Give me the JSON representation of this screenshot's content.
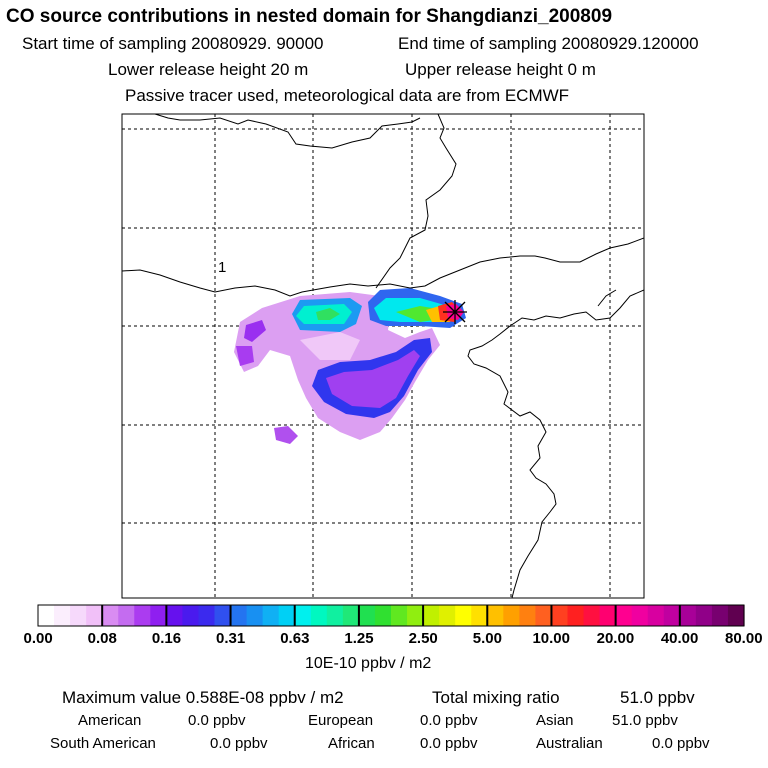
{
  "header": {
    "title": "CO  source contributions in nested domain for Shangdianzi_200809",
    "start_label": "Start time of sampling 20080929. 90000",
    "end_label": "End time of sampling 20080929.120000",
    "lower_label": "Lower release height   20 m",
    "upper_label": "Upper release height    0 m",
    "tracer_label": "Passive tracer used, meteorological data are from ECMWF"
  },
  "chart_data": {
    "type": "heatmap",
    "title": "CO  source contributions in nested domain for Shangdianzi_200809",
    "map_label": "1",
    "colorbar": {
      "ticks": [
        "0.00",
        "0.08",
        "0.16",
        "0.31",
        "0.63",
        "1.25",
        "2.50",
        "5.00",
        "10.00",
        "20.00",
        "40.00",
        "80.00"
      ],
      "colors": [
        "#ffffff",
        "#fbeefd",
        "#f6d9fb",
        "#f1c0f8",
        "#d98cf2",
        "#c46cf0",
        "#ab3cf0",
        "#8f1ff0",
        "#6611ee",
        "#4a1aee",
        "#3b2aee",
        "#3050ef",
        "#2474f0",
        "#1890f2",
        "#10b0f4",
        "#00d0f5",
        "#00f0ee",
        "#00f8c0",
        "#10f0a0",
        "#20e878",
        "#20e050",
        "#30e030",
        "#60e820",
        "#90ee10",
        "#c0f000",
        "#e0f000",
        "#ffff00",
        "#ffe000",
        "#ffc000",
        "#ffa000",
        "#ff8010",
        "#ff6020",
        "#ff4020",
        "#ff2020",
        "#ff1040",
        "#ff0070",
        "#ff0090",
        "#f000a0",
        "#d800a0",
        "#c000a0",
        "#a80098",
        "#900088",
        "#780070",
        "#600050"
      ],
      "unit": "10E-10 ppbv / m2"
    },
    "max_value_label": "Maximum value  0.588E-08 ppbv / m2",
    "total_label": "Total mixing ratio",
    "total_value": "51.0 ppbv"
  },
  "contributions": [
    {
      "name": "American",
      "value": "0.0 ppbv"
    },
    {
      "name": "European",
      "value": "0.0 ppbv"
    },
    {
      "name": "Asian",
      "value": "51.0 ppbv"
    },
    {
      "name": "South American",
      "value": "0.0 ppbv"
    },
    {
      "name": "African",
      "value": "0.0 ppbv"
    },
    {
      "name": "Australian",
      "value": "0.0 ppbv"
    }
  ]
}
